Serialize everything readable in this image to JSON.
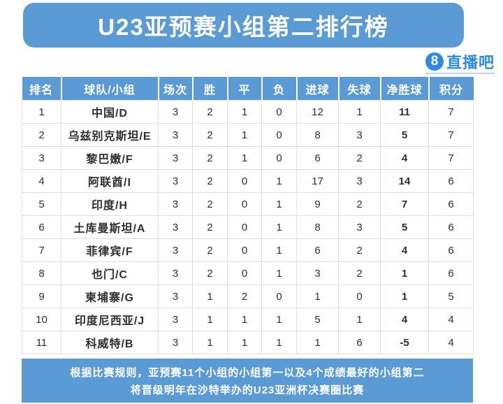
{
  "chart_data": {
    "type": "table",
    "title": "U23亚预赛小组第二排行榜",
    "columns": [
      "排名",
      "球队/小组",
      "场次",
      "胜",
      "平",
      "负",
      "进球",
      "失球",
      "净胜球",
      "积分"
    ],
    "rows": [
      [
        "1",
        "中国/D",
        "3",
        "2",
        "1",
        "0",
        "12",
        "1",
        "11",
        "7"
      ],
      [
        "2",
        "乌兹别克斯坦/E",
        "3",
        "2",
        "1",
        "0",
        "8",
        "3",
        "5",
        "7"
      ],
      [
        "3",
        "黎巴嫩/F",
        "3",
        "2",
        "1",
        "0",
        "6",
        "2",
        "4",
        "7"
      ],
      [
        "4",
        "阿联酋/I",
        "3",
        "2",
        "0",
        "1",
        "17",
        "3",
        "14",
        "6"
      ],
      [
        "5",
        "印度/H",
        "3",
        "2",
        "0",
        "1",
        "9",
        "2",
        "7",
        "6"
      ],
      [
        "6",
        "土库曼斯坦/A",
        "3",
        "2",
        "0",
        "1",
        "8",
        "3",
        "5",
        "6"
      ],
      [
        "7",
        "菲律宾/F",
        "3",
        "2",
        "0",
        "1",
        "6",
        "2",
        "4",
        "6"
      ],
      [
        "8",
        "也门/C",
        "3",
        "2",
        "0",
        "1",
        "3",
        "2",
        "1",
        "6"
      ],
      [
        "9",
        "柬埔寨/G",
        "3",
        "1",
        "2",
        "0",
        "1",
        "0",
        "1",
        "5"
      ],
      [
        "10",
        "印度尼西亚/J",
        "3",
        "1",
        "1",
        "1",
        "5",
        "1",
        "4",
        "4"
      ],
      [
        "11",
        "科威特/B",
        "3",
        "1",
        "1",
        "1",
        "1",
        "6",
        "-5",
        "4"
      ]
    ],
    "legend": "none",
    "grid": "on"
  },
  "logo": {
    "badge": "8",
    "name": "直播吧"
  },
  "footer": {
    "line1": "根据比赛规则，亚预赛11个小组的小组第一以及4个成绩最好的小组第二",
    "line2": "将晋级明年在沙特举办的U23亚洲杯决赛圈比赛"
  },
  "colors": {
    "primary_blue": "#5B9BD5",
    "logo_blue": "#2E8BE0",
    "table_border": "#DCE0E5",
    "body_text": "#2F2F2F",
    "gd_negative_value": "-5"
  }
}
